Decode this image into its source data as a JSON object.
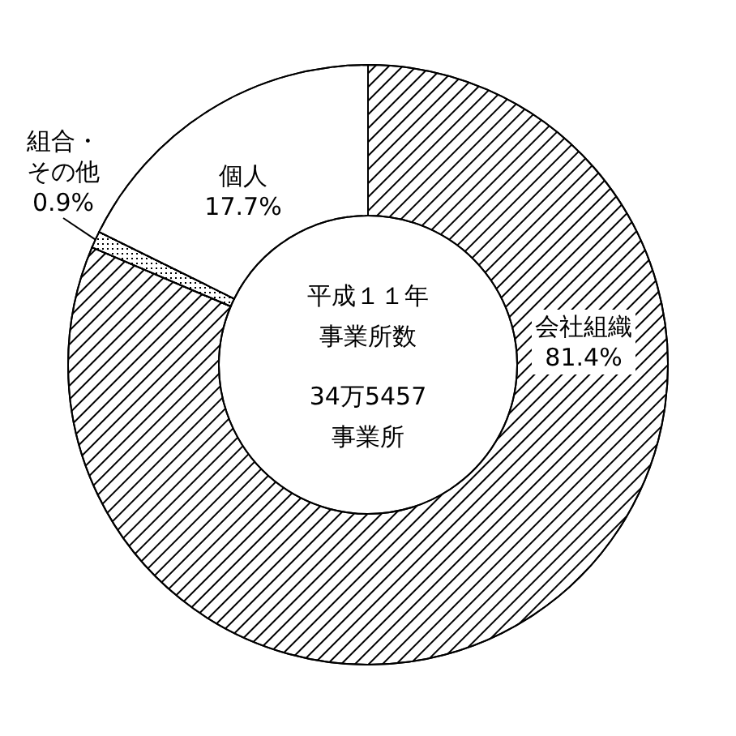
{
  "chart_data": {
    "type": "donut",
    "categories": [
      "会社組織",
      "組合・その他",
      "個人"
    ],
    "values": [
      81.4,
      0.9,
      17.7
    ],
    "colors": [
      "#000000",
      "#000000",
      "#ffffff"
    ],
    "value_labels": [
      "81.4%",
      "0.9%",
      "17.7%"
    ],
    "annotations": [
      "平成１１年事業所数",
      "34万5457事業所"
    ]
  }
}
